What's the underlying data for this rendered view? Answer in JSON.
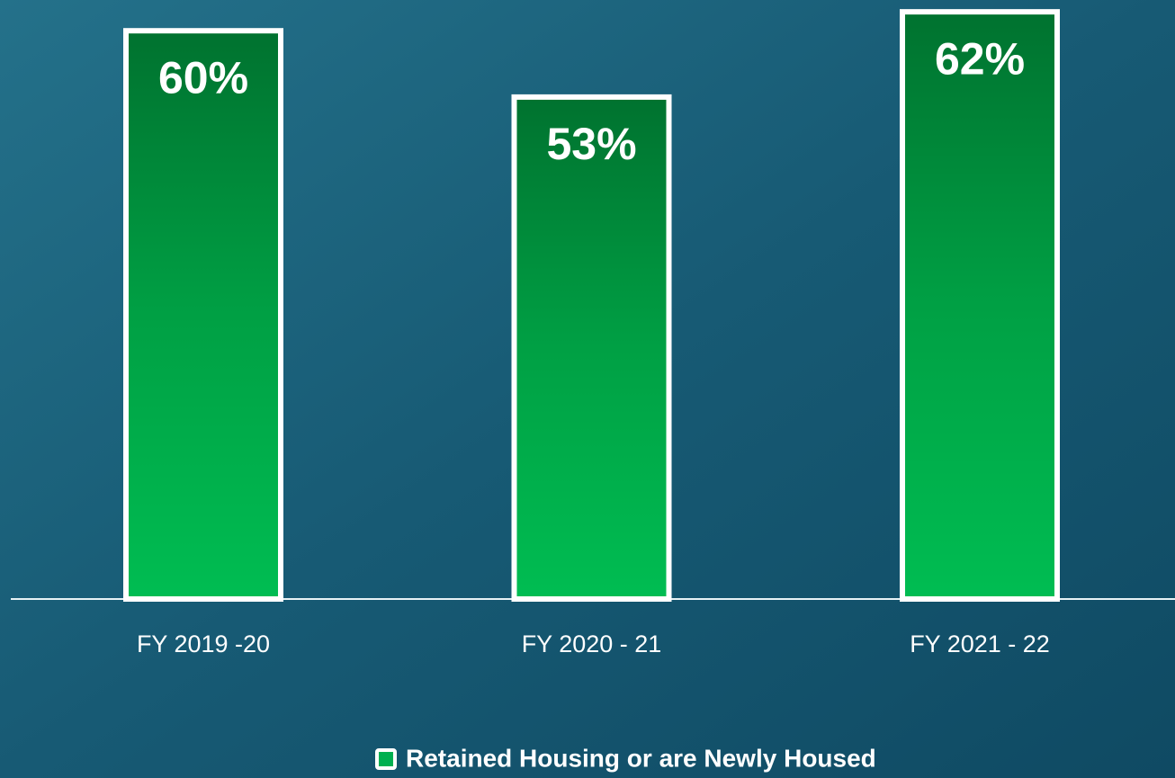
{
  "chart_data": {
    "type": "bar",
    "categories": [
      "FY 2019 -20",
      "FY 2020 - 21",
      "FY 2021 - 22"
    ],
    "series": [
      {
        "name": "Retained Housing or are Newly Housed",
        "color": "#00b050",
        "values": [
          60,
          53,
          62
        ],
        "value_labels": [
          "60%",
          "53%",
          "62%"
        ]
      }
    ]
  }
}
